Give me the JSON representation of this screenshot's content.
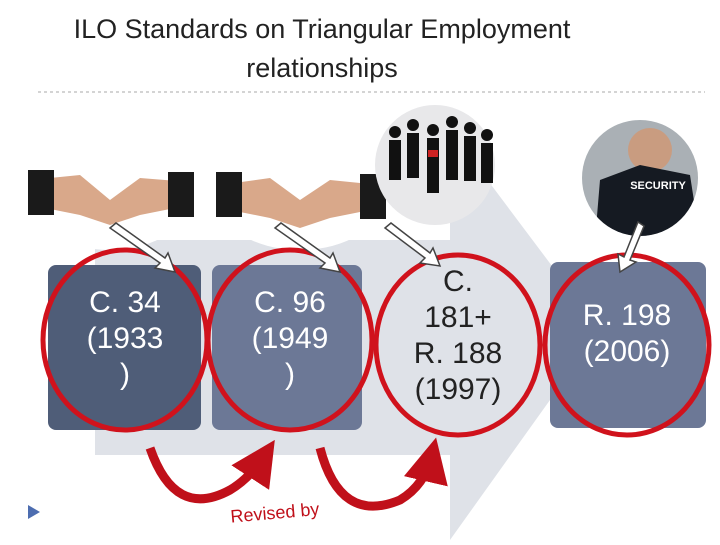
{
  "header": {
    "title_lines": [
      "ILO Standards  on Triangular Employment",
      "relationships"
    ]
  },
  "boxes": [
    {
      "lines": [
        "C. 34",
        "(1933",
        ")"
      ]
    },
    {
      "lines": [
        "C. 96",
        "(1949",
        ")"
      ]
    },
    {
      "lines": [
        "C.",
        "181+",
        "R. 188",
        "(1997)"
      ]
    },
    {
      "lines": [
        "R. 198",
        "(2006)"
      ]
    }
  ],
  "revised_label": "Revised by"
}
